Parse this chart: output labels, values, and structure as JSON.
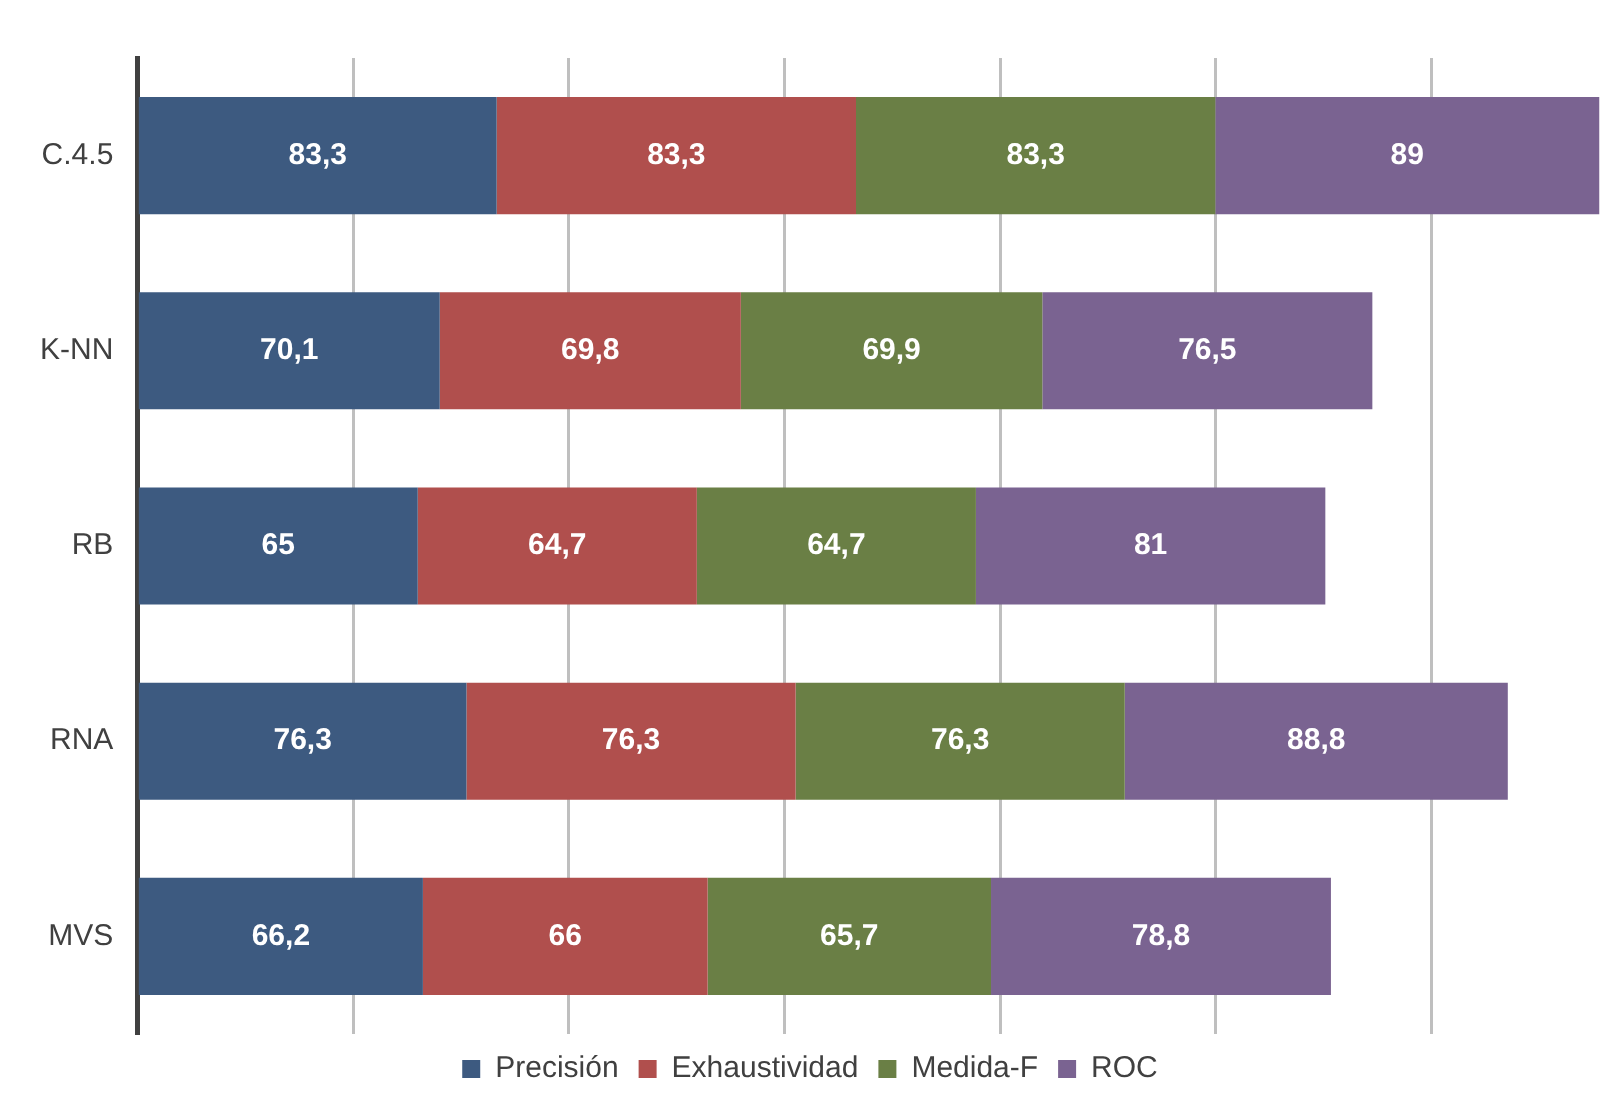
{
  "chart_data": {
    "type": "bar",
    "orientation": "horizontal",
    "stacked": true,
    "categories": [
      "C.4.5",
      "K-NN",
      "RB",
      "RNA",
      "MVS"
    ],
    "series": [
      {
        "name": "Precisión",
        "color": "#3d5a80",
        "values": [
          83.3,
          70.1,
          65,
          76.3,
          66.2
        ],
        "value_labels": [
          "83,3",
          "70,1",
          "65",
          "76,3",
          "66,2"
        ]
      },
      {
        "name": "Exhaustividad",
        "color": "#b04f4d",
        "values": [
          83.3,
          69.8,
          64.7,
          76.3,
          66
        ],
        "value_labels": [
          "83,3",
          "69,8",
          "64,7",
          "76,3",
          "66"
        ]
      },
      {
        "name": "Medida-F",
        "color": "#6a7f45",
        "values": [
          83.3,
          69.9,
          64.7,
          76.3,
          65.7
        ],
        "value_labels": [
          "83,3",
          "69,9",
          "64,7",
          "76,3",
          "65,7"
        ]
      },
      {
        "name": "ROC",
        "color": "#7a6391",
        "values": [
          89,
          76.5,
          81,
          88.8,
          78.8
        ],
        "value_labels": [
          "89",
          "76,5",
          "81",
          "88,8",
          "78,8"
        ]
      }
    ],
    "xlim": [
      0,
      340
    ],
    "xticks": [
      {
        "value": 0,
        "label": null
      },
      {
        "value": 50,
        "label": null
      },
      {
        "value": 100,
        "label": null
      },
      {
        "value": 150,
        "label": null
      },
      {
        "value": 200,
        "label": null
      },
      {
        "value": 250,
        "label": null
      },
      {
        "value": 300,
        "label": null
      }
    ],
    "grid": "x",
    "legend": "bottom",
    "tick_labels": "y"
  }
}
